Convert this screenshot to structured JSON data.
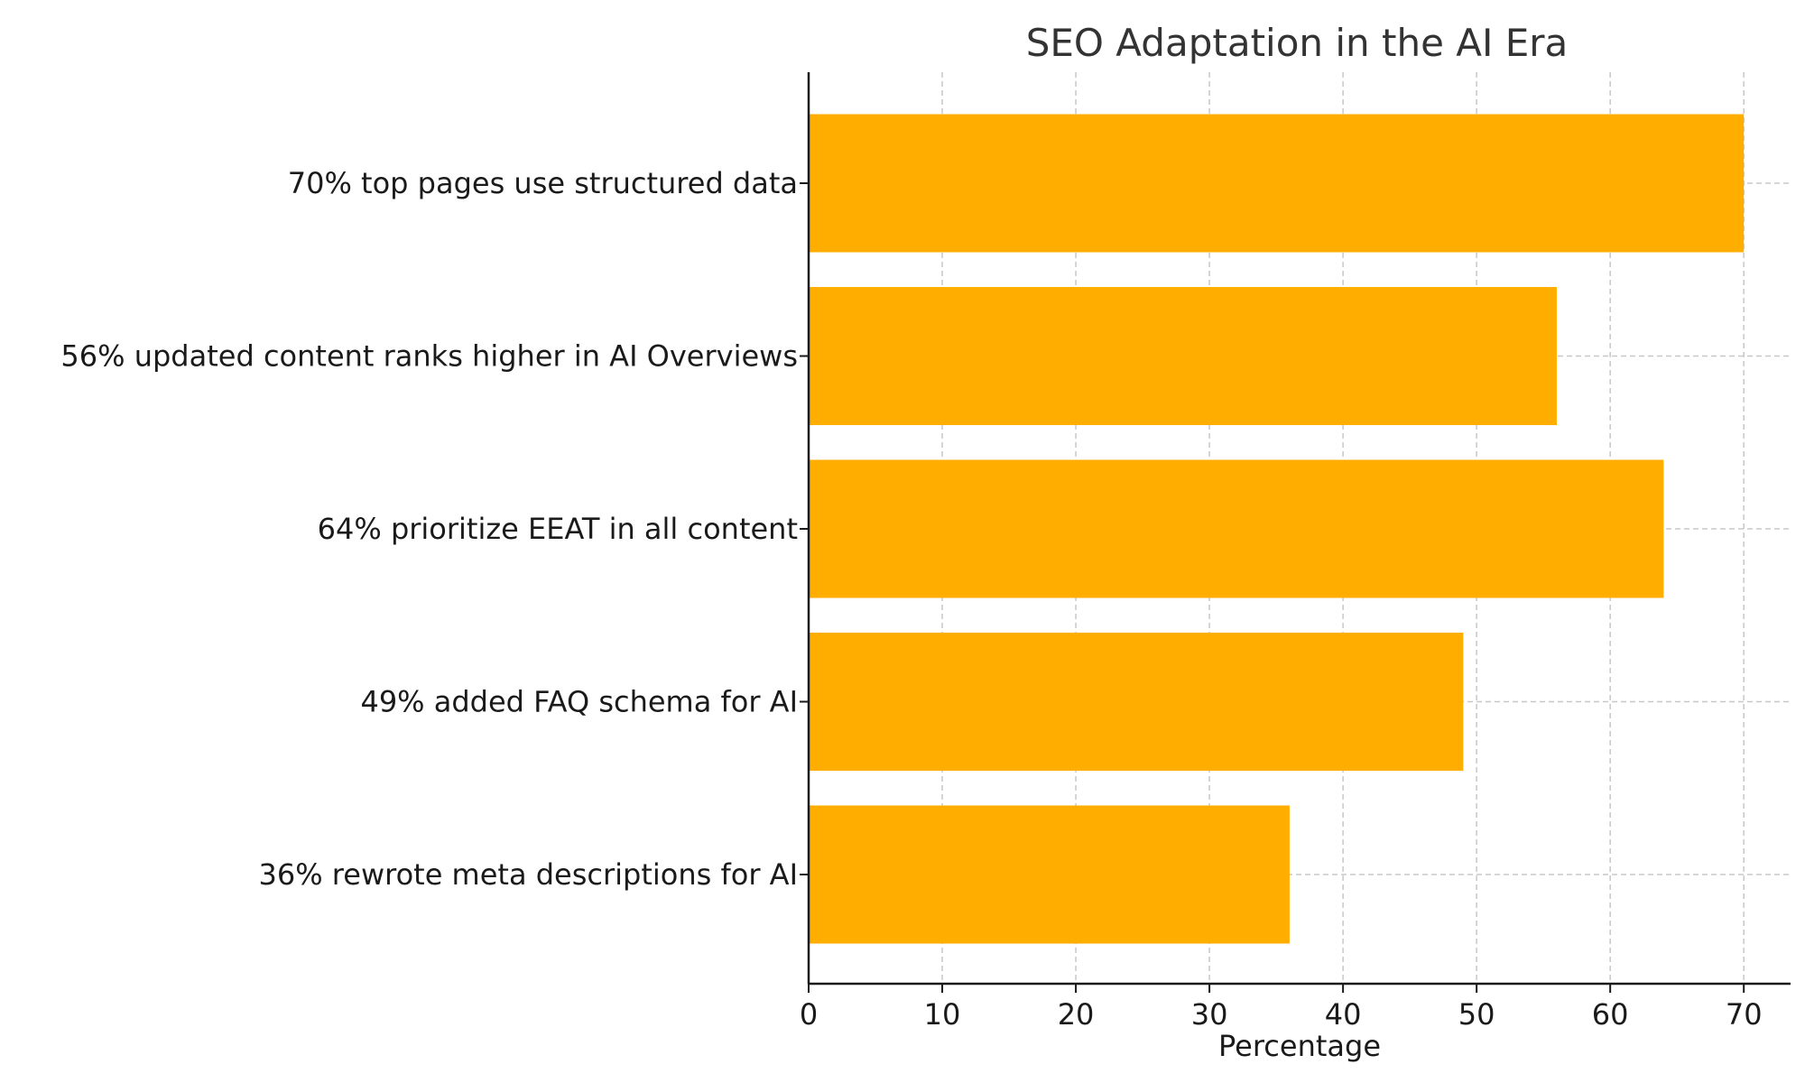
{
  "chart_data": {
    "type": "bar",
    "orientation": "horizontal",
    "title": "SEO Adaptation in the AI Era",
    "xlabel": "Percentage",
    "ylabel": "",
    "categories": [
      "70% top pages use structured data",
      "56% updated content ranks higher in AI Overviews",
      "64% prioritize EEAT in all content",
      "49% added FAQ schema for AI",
      "36% rewrote meta descriptions for AI"
    ],
    "values": [
      70,
      56,
      64,
      49,
      36
    ],
    "xlim": [
      0,
      73.5
    ],
    "xticks": [
      0,
      10,
      20,
      30,
      40,
      50,
      60,
      70
    ],
    "grid": true,
    "bar_color": "#ffae00",
    "grid_color": "#c8c8c8",
    "axis_color": "#1a1a1a"
  }
}
